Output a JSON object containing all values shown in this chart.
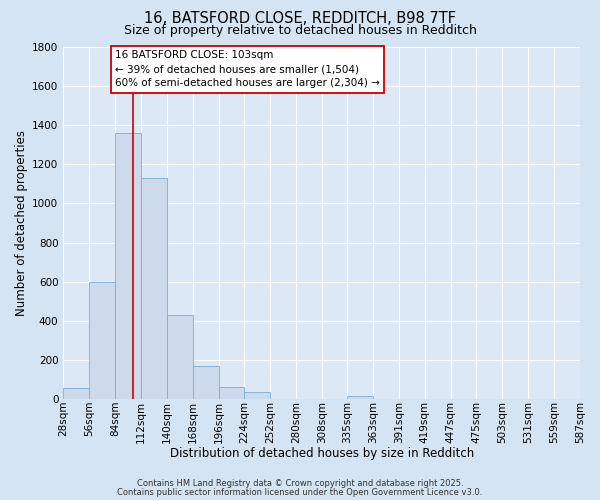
{
  "title1": "16, BATSFORD CLOSE, REDDITCH, B98 7TF",
  "title2": "Size of property relative to detached houses in Redditch",
  "xlabel": "Distribution of detached houses by size in Redditch",
  "ylabel": "Number of detached properties",
  "bin_edges": [
    28,
    56,
    84,
    112,
    140,
    168,
    196,
    224,
    252,
    280,
    308,
    335,
    363,
    391,
    419,
    447,
    475,
    503,
    531,
    559,
    587
  ],
  "bin_labels": [
    "28sqm",
    "56sqm",
    "84sqm",
    "112sqm",
    "140sqm",
    "168sqm",
    "196sqm",
    "224sqm",
    "252sqm",
    "280sqm",
    "308sqm",
    "335sqm",
    "363sqm",
    "391sqm",
    "419sqm",
    "447sqm",
    "475sqm",
    "503sqm",
    "531sqm",
    "559sqm",
    "587sqm"
  ],
  "heights": [
    60,
    600,
    1360,
    1130,
    430,
    170,
    65,
    35,
    0,
    0,
    0,
    15,
    0,
    0,
    0,
    0,
    0,
    0,
    0,
    0
  ],
  "bar_color": "#ccdaec",
  "bar_edge_color": "#7aadd4",
  "vline_x": 103,
  "vline_color": "#cc0000",
  "ylim_max": 1800,
  "yticks": [
    0,
    200,
    400,
    600,
    800,
    1000,
    1200,
    1400,
    1600,
    1800
  ],
  "annotation_title": "16 BATSFORD CLOSE: 103sqm",
  "annotation_line1": "← 39% of detached houses are smaller (1,504)",
  "annotation_line2": "60% of semi-detached houses are larger (2,304) →",
  "footer1": "Contains HM Land Registry data © Crown copyright and database right 2025.",
  "footer2": "Contains public sector information licensed under the Open Government Licence v3.0.",
  "fig_bg_color": "#d5e4f3",
  "plot_bg_color": "#dce8f5",
  "grid_color": "#ffffff",
  "title_fontsize": 10.5,
  "subtitle_fontsize": 9,
  "axis_label_fontsize": 8.5,
  "tick_fontsize": 7.5,
  "annot_fontsize": 7.5,
  "footer_fontsize": 6
}
